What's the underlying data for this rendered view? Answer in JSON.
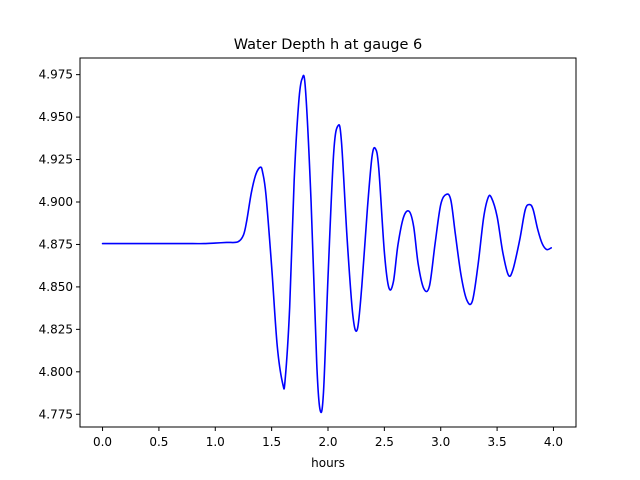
{
  "chart_data": {
    "type": "line",
    "title": "Water Depth h at gauge 6",
    "xlabel": "hours",
    "ylabel": "",
    "xlim": [
      -0.2,
      4.2
    ],
    "ylim": [
      4.7675,
      4.9848
    ],
    "x_ticks": [
      "0.0",
      "0.5",
      "1.0",
      "1.5",
      "2.0",
      "2.5",
      "3.0",
      "3.5",
      "4.0"
    ],
    "y_ticks": [
      "4.775",
      "4.800",
      "4.825",
      "4.850",
      "4.875",
      "4.900",
      "4.925",
      "4.950",
      "4.975"
    ],
    "grid": false,
    "legend": "none",
    "series": [
      {
        "color": "#0000ff",
        "x": [
          0.0,
          0.2,
          0.4,
          0.6,
          0.8,
          0.9,
          1.0,
          1.1,
          1.2,
          1.25,
          1.28,
          1.32,
          1.36,
          1.4,
          1.42,
          1.45,
          1.5,
          1.55,
          1.6,
          1.62,
          1.66,
          1.7,
          1.74,
          1.77,
          1.8,
          1.85,
          1.9,
          1.93,
          1.96,
          2.0,
          2.05,
          2.09,
          2.12,
          2.17,
          2.22,
          2.26,
          2.3,
          2.35,
          2.39,
          2.42,
          2.45,
          2.5,
          2.54,
          2.58,
          2.62,
          2.67,
          2.72,
          2.76,
          2.8,
          2.85,
          2.9,
          2.95,
          3.0,
          3.05,
          3.09,
          3.13,
          3.18,
          3.23,
          3.28,
          3.33,
          3.38,
          3.42,
          3.45,
          3.5,
          3.55,
          3.6,
          3.64,
          3.7,
          3.75,
          3.79,
          3.82,
          3.86,
          3.9,
          3.94,
          3.98
        ],
        "y": [
          4.8755,
          4.8755,
          4.8755,
          4.8755,
          4.8755,
          4.8755,
          4.8758,
          4.8762,
          4.8765,
          4.8805,
          4.8893,
          4.9055,
          4.9163,
          4.9205,
          4.9175,
          4.904,
          4.862,
          4.815,
          4.7925,
          4.7955,
          4.838,
          4.913,
          4.9585,
          4.9725,
          4.9665,
          4.9,
          4.805,
          4.7775,
          4.788,
          4.8555,
          4.9285,
          4.945,
          4.935,
          4.878,
          4.8335,
          4.825,
          4.8505,
          4.8965,
          4.9265,
          4.9315,
          4.92,
          4.8705,
          4.8495,
          4.853,
          4.8745,
          4.891,
          4.8945,
          4.8855,
          4.8635,
          4.849,
          4.8505,
          4.8755,
          4.8985,
          4.9045,
          4.901,
          4.881,
          4.857,
          4.8425,
          4.8415,
          4.8625,
          4.8905,
          4.9025,
          4.9025,
          4.8915,
          4.8705,
          4.857,
          4.86,
          4.8775,
          4.8955,
          4.8985,
          4.8955,
          4.884,
          4.8755,
          4.872,
          4.873
        ]
      }
    ]
  }
}
